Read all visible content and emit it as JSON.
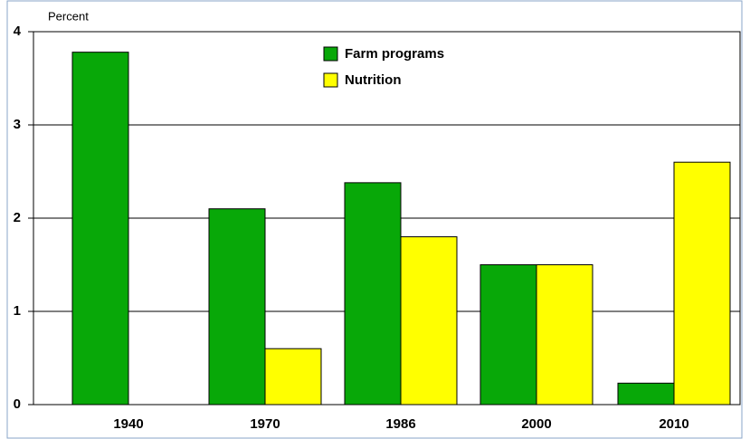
{
  "chart_data": {
    "type": "bar",
    "y_label": "Percent",
    "categories": [
      "1940",
      "1970",
      "1986",
      "2000",
      "2010"
    ],
    "series": [
      {
        "name": "Farm programs",
        "color": "#08a808",
        "values": [
          3.78,
          2.1,
          2.38,
          1.5,
          0.23
        ]
      },
      {
        "name": "Nutrition",
        "color": "#ffff00",
        "values": [
          0,
          0.6,
          1.8,
          1.5,
          2.6
        ]
      }
    ],
    "ylim": [
      0,
      4
    ],
    "yticks": [
      0,
      1,
      2,
      3,
      4
    ],
    "grid": true
  }
}
